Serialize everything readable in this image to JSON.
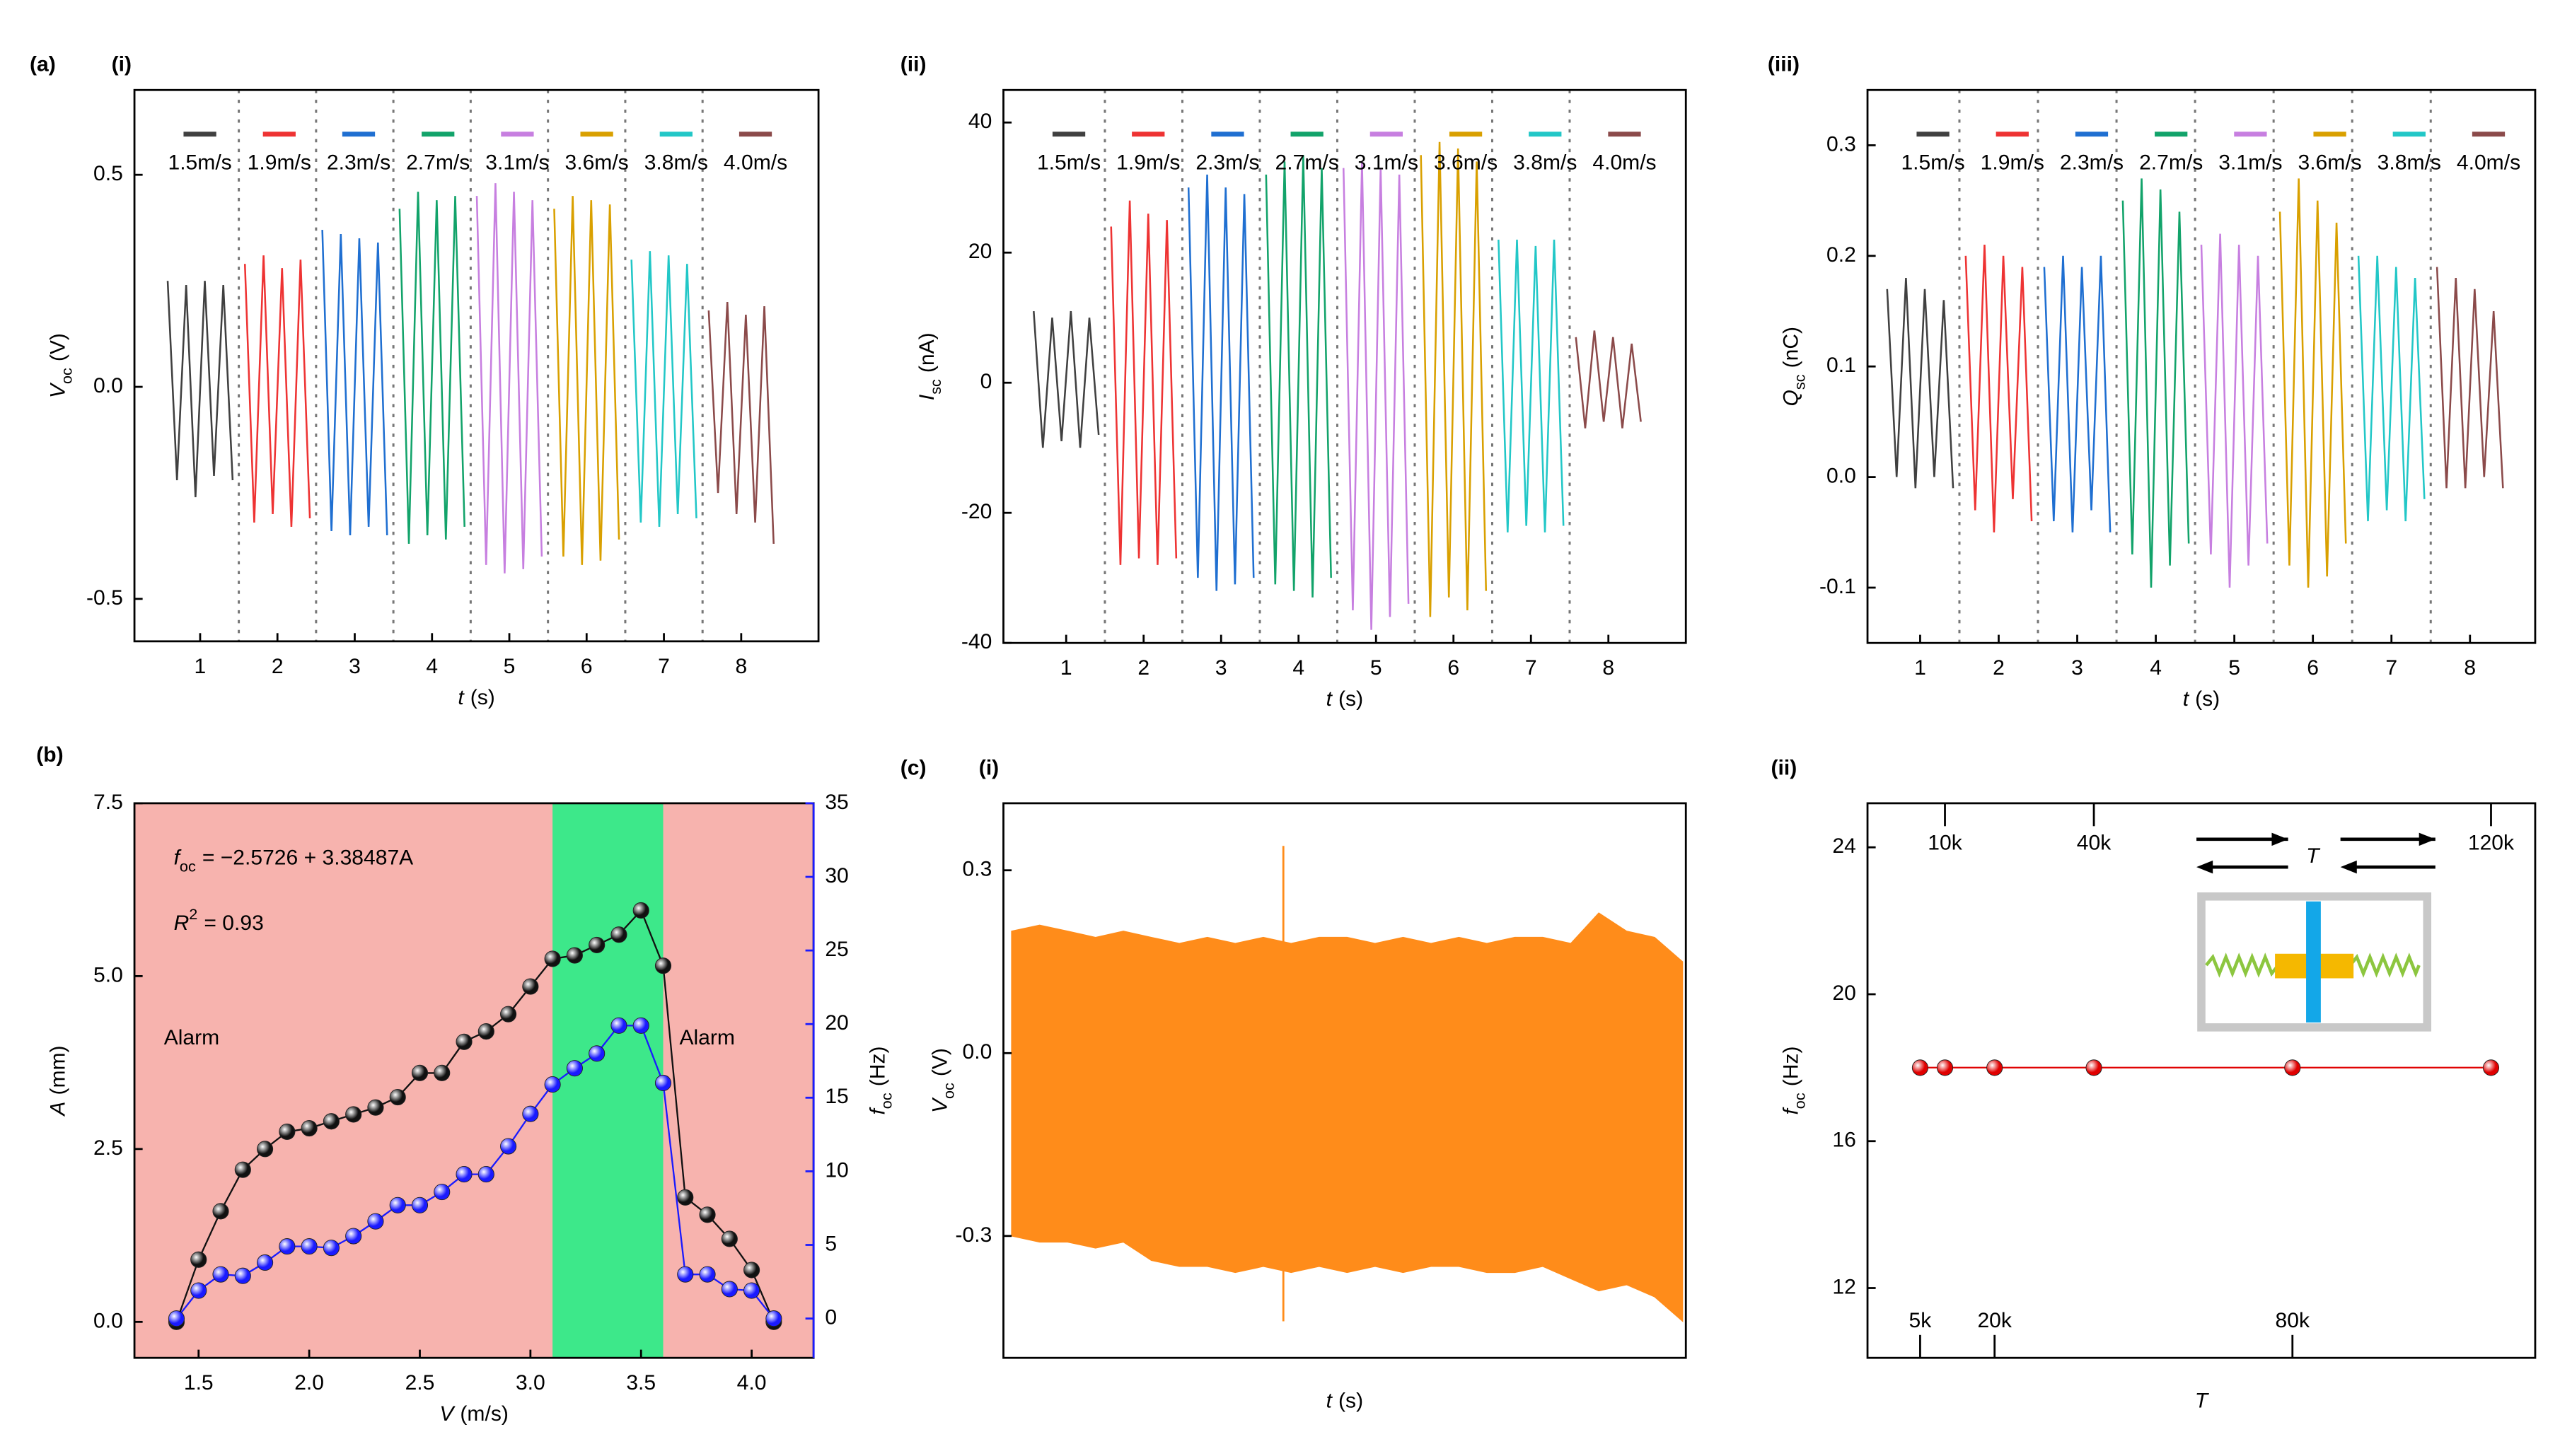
{
  "panel_labels": [
    "(a)",
    "(i)",
    "(ii)",
    "(iii)",
    "(b)",
    "(c)",
    "(i)",
    "(ii)"
  ],
  "chart_data": [
    {
      "type": "line",
      "xlabel": {
        "main": "t",
        "rest": "(s)"
      },
      "ylabel": {
        "main": "V",
        "sub": "oc",
        "rest": "(V)"
      },
      "xlim": [
        0.15,
        9.0
      ],
      "xticks": [
        1,
        2,
        3,
        4,
        5,
        6,
        7,
        8
      ],
      "ylim": [
        -0.6,
        0.7
      ],
      "yticks": [
        -0.5,
        {
          "value": 0,
          "label": "0.0"
        },
        0.5
      ],
      "vlines": [
        1.5,
        2.5,
        3.5,
        4.5,
        5.5,
        6.5,
        7.5
      ],
      "series": [
        {
          "name": "1.5m/s",
          "color": "#404040",
          "x": [
            0.58,
            0.7,
            0.82,
            0.94,
            1.06,
            1.18,
            1.3,
            1.42
          ],
          "values": [
            0.25,
            -0.22,
            0.24,
            -0.26,
            0.25,
            -0.21,
            0.24,
            -0.22
          ]
        },
        {
          "name": "1.9m/s",
          "color": "#ee3333",
          "x": [
            1.58,
            1.7,
            1.82,
            1.94,
            2.06,
            2.18,
            2.3,
            2.42
          ],
          "values": [
            0.29,
            -0.32,
            0.31,
            -0.3,
            0.28,
            -0.33,
            0.3,
            -0.31
          ]
        },
        {
          "name": "2.3m/s",
          "color": "#1f6fd1",
          "x": [
            2.58,
            2.7,
            2.82,
            2.94,
            3.06,
            3.18,
            3.3,
            3.42
          ],
          "values": [
            0.37,
            -0.34,
            0.36,
            -0.35,
            0.35,
            -0.33,
            0.34,
            -0.35
          ]
        },
        {
          "name": "2.7m/s",
          "color": "#12a36a",
          "x": [
            3.58,
            3.7,
            3.82,
            3.94,
            4.06,
            4.18,
            4.3,
            4.42
          ],
          "values": [
            0.42,
            -0.37,
            0.46,
            -0.35,
            0.44,
            -0.36,
            0.45,
            -0.33
          ]
        },
        {
          "name": "3.1m/s",
          "color": "#c77fe0",
          "x": [
            4.58,
            4.7,
            4.82,
            4.94,
            5.06,
            5.18,
            5.3,
            5.42
          ],
          "values": [
            0.45,
            -0.42,
            0.48,
            -0.44,
            0.46,
            -0.43,
            0.44,
            -0.4
          ]
        },
        {
          "name": "3.6m/s",
          "color": "#d9a000",
          "x": [
            5.58,
            5.7,
            5.82,
            5.94,
            6.06,
            6.18,
            6.3,
            6.42
          ],
          "values": [
            0.42,
            -0.4,
            0.45,
            -0.42,
            0.44,
            -0.41,
            0.43,
            -0.36
          ]
        },
        {
          "name": "3.8m/s",
          "color": "#22c7c7",
          "x": [
            6.58,
            6.7,
            6.82,
            6.94,
            7.06,
            7.18,
            7.3,
            7.42
          ],
          "values": [
            0.3,
            -0.32,
            0.32,
            -0.33,
            0.31,
            -0.3,
            0.29,
            -0.31
          ]
        },
        {
          "name": "4.0m/s",
          "color": "#8b4a4a",
          "x": [
            7.58,
            7.7,
            7.82,
            7.94,
            8.06,
            8.18,
            8.3,
            8.42
          ],
          "values": [
            0.18,
            -0.25,
            0.2,
            -0.3,
            0.17,
            -0.32,
            0.19,
            -0.37
          ]
        }
      ]
    },
    {
      "type": "line",
      "xlabel": {
        "main": "t",
        "rest": "(s)"
      },
      "ylabel": {
        "main": "I",
        "sub": "sc",
        "rest": "(nA)"
      },
      "xlim": [
        0.19,
        9.0
      ],
      "xticks": [
        1,
        2,
        3,
        4,
        5,
        6,
        7,
        8
      ],
      "ylim": [
        -40,
        45
      ],
      "yticks": [
        -40,
        -20,
        0,
        20,
        40
      ],
      "vlines": [
        1.5,
        2.5,
        3.5,
        4.5,
        5.5,
        6.5,
        7.5
      ],
      "series": [
        {
          "name": "1.5m/s",
          "color": "#404040",
          "x": [
            0.58,
            0.7,
            0.82,
            0.94,
            1.06,
            1.18,
            1.3,
            1.42
          ],
          "values": [
            11,
            -10,
            10,
            -9,
            11,
            -10,
            10,
            -8
          ]
        },
        {
          "name": "1.9m/s",
          "color": "#ee3333",
          "x": [
            1.58,
            1.7,
            1.82,
            1.94,
            2.06,
            2.18,
            2.3,
            2.42
          ],
          "values": [
            24,
            -28,
            28,
            -27,
            26,
            -28,
            25,
            -27
          ]
        },
        {
          "name": "2.3m/s",
          "color": "#1f6fd1",
          "x": [
            2.58,
            2.7,
            2.82,
            2.94,
            3.06,
            3.18,
            3.3,
            3.42
          ],
          "values": [
            30,
            -30,
            32,
            -32,
            30,
            -31,
            29,
            -30
          ]
        },
        {
          "name": "2.7m/s",
          "color": "#12a36a",
          "x": [
            3.58,
            3.7,
            3.82,
            3.94,
            4.06,
            4.18,
            4.3,
            4.42
          ],
          "values": [
            32,
            -31,
            34,
            -32,
            35,
            -33,
            33,
            -30
          ]
        },
        {
          "name": "3.1m/s",
          "color": "#c77fe0",
          "x": [
            4.58,
            4.7,
            4.82,
            4.94,
            5.06,
            5.18,
            5.3,
            5.42
          ],
          "values": [
            33,
            -35,
            34,
            -38,
            33,
            -36,
            32,
            -34
          ]
        },
        {
          "name": "3.6m/s",
          "color": "#d9a000",
          "x": [
            5.58,
            5.7,
            5.82,
            5.94,
            6.06,
            6.18,
            6.3,
            6.42
          ],
          "values": [
            35,
            -36,
            37,
            -33,
            36,
            -35,
            34,
            -32
          ]
        },
        {
          "name": "3.8m/s",
          "color": "#22c7c7",
          "x": [
            6.58,
            6.7,
            6.82,
            6.94,
            7.06,
            7.18,
            7.3,
            7.42
          ],
          "values": [
            22,
            -23,
            22,
            -22,
            21,
            -23,
            22,
            -22
          ]
        },
        {
          "name": "4.0m/s",
          "color": "#8b4a4a",
          "x": [
            7.58,
            7.7,
            7.82,
            7.94,
            8.06,
            8.18,
            8.3,
            8.42
          ],
          "values": [
            7,
            -7,
            8,
            -6,
            7,
            -7,
            6,
            -6
          ]
        }
      ]
    },
    {
      "type": "line",
      "xlabel": {
        "main": "t",
        "rest": "(s)"
      },
      "ylabel": {
        "main": "Q",
        "sub": "sc",
        "rest": "(nC)"
      },
      "xlim": [
        0.33,
        8.83
      ],
      "xticks": [
        1,
        2,
        3,
        4,
        5,
        6,
        7,
        8
      ],
      "ylim": [
        -0.15,
        0.35
      ],
      "yticks": [
        -0.1,
        {
          "value": 0,
          "label": "0.0"
        },
        0.1,
        0.2,
        0.3
      ],
      "vlines": [
        1.5,
        2.5,
        3.5,
        4.5,
        5.5,
        6.5,
        7.5
      ],
      "series": [
        {
          "name": "1.5m/s",
          "color": "#404040",
          "x": [
            0.58,
            0.7,
            0.82,
            0.94,
            1.06,
            1.18,
            1.3,
            1.42
          ],
          "values": [
            0.17,
            0.0,
            0.18,
            -0.01,
            0.17,
            0.0,
            0.16,
            -0.01
          ]
        },
        {
          "name": "1.9m/s",
          "color": "#ee3333",
          "x": [
            1.58,
            1.7,
            1.82,
            1.94,
            2.06,
            2.18,
            2.3,
            2.42
          ],
          "values": [
            0.2,
            -0.03,
            0.21,
            -0.05,
            0.2,
            -0.02,
            0.19,
            -0.04
          ]
        },
        {
          "name": "2.3m/s",
          "color": "#1f6fd1",
          "x": [
            2.58,
            2.7,
            2.82,
            2.94,
            3.06,
            3.18,
            3.3,
            3.42
          ],
          "values": [
            0.19,
            -0.04,
            0.2,
            -0.05,
            0.19,
            -0.03,
            0.2,
            -0.05
          ]
        },
        {
          "name": "2.7m/s",
          "color": "#12a36a",
          "x": [
            3.58,
            3.7,
            3.82,
            3.94,
            4.06,
            4.18,
            4.3,
            4.42
          ],
          "values": [
            0.25,
            -0.07,
            0.27,
            -0.1,
            0.26,
            -0.08,
            0.24,
            -0.06
          ]
        },
        {
          "name": "3.1m/s",
          "color": "#c77fe0",
          "x": [
            4.58,
            4.7,
            4.82,
            4.94,
            5.06,
            5.18,
            5.3,
            5.42
          ],
          "values": [
            0.21,
            -0.07,
            0.22,
            -0.1,
            0.21,
            -0.08,
            0.2,
            -0.06
          ]
        },
        {
          "name": "3.6m/s",
          "color": "#d9a000",
          "x": [
            5.58,
            5.7,
            5.82,
            5.94,
            6.06,
            6.18,
            6.3,
            6.42
          ],
          "values": [
            0.24,
            -0.08,
            0.27,
            -0.1,
            0.25,
            -0.09,
            0.23,
            -0.06
          ]
        },
        {
          "name": "3.8m/s",
          "color": "#22c7c7",
          "x": [
            6.58,
            6.7,
            6.82,
            6.94,
            7.06,
            7.18,
            7.3,
            7.42
          ],
          "values": [
            0.2,
            -0.04,
            0.2,
            -0.03,
            0.19,
            -0.04,
            0.18,
            -0.02
          ]
        },
        {
          "name": "4.0m/s",
          "color": "#8b4a4a",
          "x": [
            7.58,
            7.7,
            7.82,
            7.94,
            8.06,
            8.18,
            8.3,
            8.42
          ],
          "values": [
            0.19,
            -0.01,
            0.18,
            -0.01,
            0.17,
            0.0,
            0.15,
            -0.01
          ]
        }
      ]
    },
    {
      "type": "line",
      "marker": "circle",
      "background": "#f7b3ae",
      "band": [
        3.1,
        3.6
      ],
      "band_color": "#3de88a",
      "annotations": [
        "Alarm",
        "Alarm"
      ],
      "equation": {
        "main": "f",
        "sub": "oc",
        "rest": "= −2.5726 + 3.38487A"
      },
      "r2": {
        "main": "R",
        "sup": "2",
        "rest": "= 0.93"
      },
      "xlabel": {
        "main": "V",
        "rest": "(m/s)"
      },
      "ylabel": {
        "main": "A",
        "rest": "(mm)"
      },
      "y2label": {
        "main": "f",
        "sub": "oc",
        "rest": "(Hz)"
      },
      "xlim": [
        1.21,
        4.28
      ],
      "xticks": [
        1.5,
        {
          "value": 2,
          "label": "2.0"
        },
        2.5,
        {
          "value": 3,
          "label": "3.0"
        },
        3.5,
        {
          "value": 4,
          "label": "4.0"
        }
      ],
      "ylim": [
        -0.52,
        7.5
      ],
      "yticks": [
        {
          "value": 0,
          "label": "0.0"
        },
        2.5,
        {
          "value": 5,
          "label": "5.0"
        },
        7.5
      ],
      "y2lim": [
        -2.67,
        35
      ],
      "y2ticks": [
        0,
        5,
        10,
        15,
        20,
        25,
        30,
        35
      ],
      "series": [
        {
          "color": "#111111",
          "x": [
            1.4,
            1.5,
            1.6,
            1.7,
            1.8,
            1.9,
            2.0,
            2.1,
            2.2,
            2.3,
            2.4,
            2.5,
            2.6,
            2.7,
            2.8,
            2.9,
            3.0,
            3.1,
            3.2,
            3.3,
            3.4,
            3.5,
            3.6,
            3.7,
            3.8,
            3.9,
            4.0,
            4.1
          ],
          "values": [
            0,
            0.9,
            1.6,
            2.2,
            2.5,
            2.75,
            2.8,
            2.9,
            3.0,
            3.1,
            3.25,
            3.6,
            3.6,
            4.05,
            4.2,
            4.45,
            4.85,
            5.25,
            5.3,
            5.45,
            5.6,
            5.95,
            5.15,
            1.8,
            1.55,
            1.2,
            0.75,
            0
          ]
        },
        {
          "color": "#1a1aff",
          "axis": "y2",
          "x": [
            1.4,
            1.5,
            1.6,
            1.7,
            1.8,
            1.9,
            2.0,
            2.1,
            2.2,
            2.3,
            2.4,
            2.5,
            2.6,
            2.7,
            2.8,
            2.9,
            3.0,
            3.1,
            3.2,
            3.3,
            3.4,
            3.5,
            3.6,
            3.7,
            3.8,
            3.9,
            4.0,
            4.1
          ],
          "values": [
            0,
            1.9,
            3,
            2.9,
            3.8,
            4.9,
            4.9,
            4.8,
            5.6,
            6.6,
            7.7,
            7.7,
            8.6,
            9.8,
            9.8,
            11.7,
            13.9,
            15.9,
            17,
            18,
            19.9,
            19.9,
            16,
            3,
            3,
            2,
            1.9,
            0
          ]
        }
      ]
    },
    {
      "type": "area",
      "color": "#ff8c1a",
      "xlabel": {
        "main": "t",
        "rest": "(s)"
      },
      "ylabel": {
        "main": "V",
        "sub": "oc",
        "rest": "(V)"
      },
      "ylim": [
        -0.5,
        0.41
      ],
      "yticks": [
        -0.3,
        {
          "value": 0,
          "label": "0.0"
        },
        0.3
      ],
      "upper": [
        0.2,
        0.21,
        0.2,
        0.19,
        0.2,
        0.19,
        0.18,
        0.19,
        0.18,
        0.19,
        0.18,
        0.19,
        0.19,
        0.18,
        0.19,
        0.18,
        0.19,
        0.18,
        0.19,
        0.19,
        0.18,
        0.23,
        0.2,
        0.19,
        0.15
      ],
      "lower": [
        -0.3,
        -0.31,
        -0.31,
        -0.32,
        -0.31,
        -0.34,
        -0.35,
        -0.35,
        -0.36,
        -0.35,
        -0.36,
        -0.35,
        -0.36,
        -0.35,
        -0.36,
        -0.35,
        -0.35,
        -0.36,
        -0.36,
        -0.35,
        -0.37,
        -0.39,
        -0.38,
        -0.4,
        -0.44
      ],
      "spike": [
        0.34,
        -0.44
      ]
    },
    {
      "type": "line",
      "marker": "circle",
      "xlabel": {
        "main": "T"
      },
      "ylabel": {
        "main": "f",
        "sub": "oc",
        "rest": "(Hz)"
      },
      "inset_label": "T",
      "xlim": [
        -5600,
        128900
      ],
      "xticks": [
        {
          "value": 5000,
          "label": "5k"
        },
        {
          "value": 10000,
          "label": "10k"
        },
        {
          "value": 20000,
          "label": "20k"
        },
        {
          "value": 40000,
          "label": "40k"
        },
        {
          "value": 80000,
          "label": "80k"
        },
        {
          "value": 120000,
          "label": "120k"
        }
      ],
      "ylim": [
        10.1,
        25.2
      ],
      "yticks": [
        12,
        16,
        20,
        24
      ],
      "series": [
        {
          "color": "#e00000",
          "x": [
            5000,
            10000,
            20000,
            40000,
            80000,
            120000
          ],
          "values": [
            18,
            18,
            18,
            18,
            18,
            18
          ]
        }
      ]
    }
  ]
}
